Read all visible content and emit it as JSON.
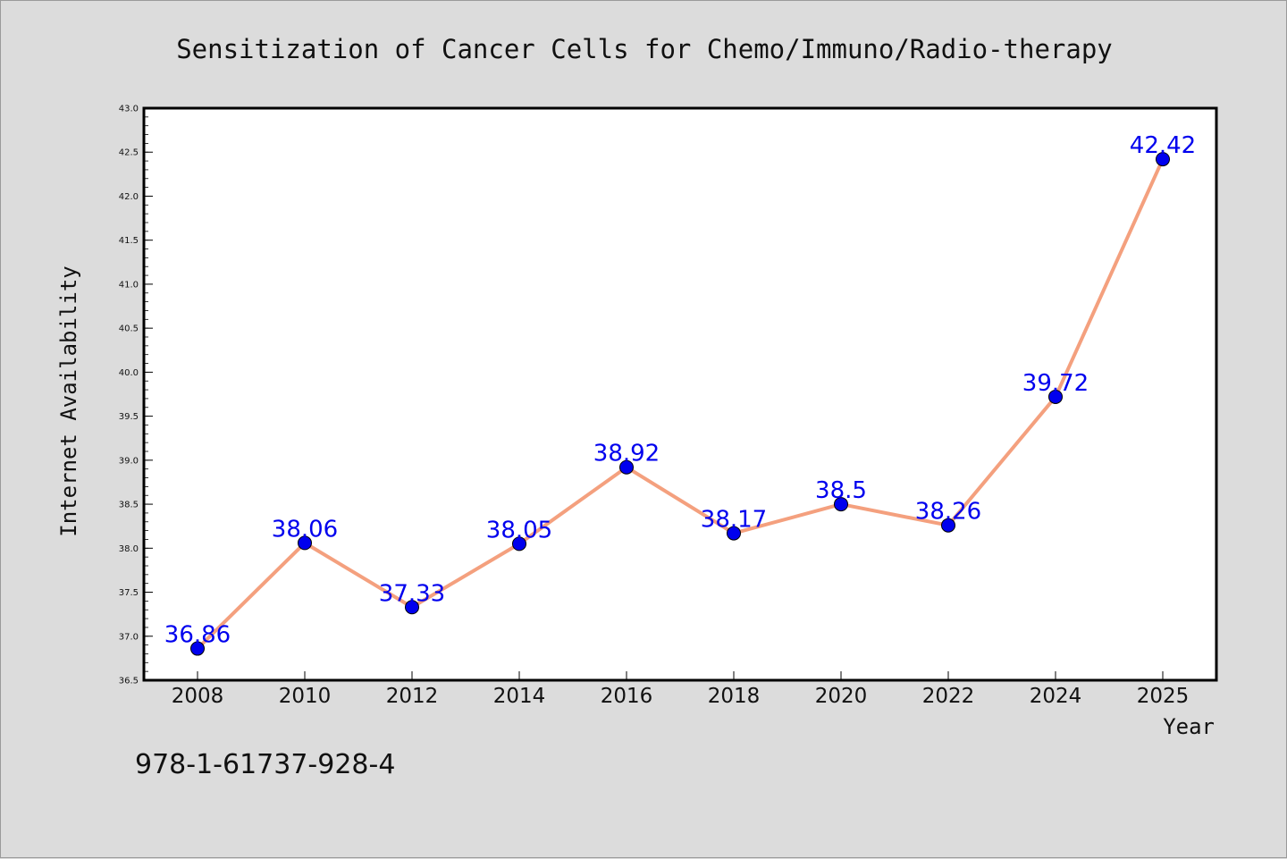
{
  "chart_data": {
    "type": "line",
    "title": "Sensitization of Cancer Cells for Chemo/Immuno/Radio-therapy",
    "xlabel": "Year",
    "ylabel": "Internet Availability",
    "x": [
      "2008",
      "2010",
      "2012",
      "2014",
      "2016",
      "2018",
      "2020",
      "2022",
      "2024",
      "2025"
    ],
    "series": [
      {
        "values": [
          36.86,
          38.06,
          37.33,
          38.05,
          38.92,
          38.17,
          38.5,
          38.26,
          39.72,
          42.42
        ],
        "labels": [
          "36.86",
          "38.06",
          "37.33",
          "38.05",
          "38.92",
          "38.17",
          "38.5",
          "38.26",
          "39.72",
          "42.42"
        ]
      }
    ],
    "ylim": [
      36.5,
      43.0
    ],
    "yticks": [
      "36.5",
      "37.0",
      "37.5",
      "38.0",
      "38.5",
      "39.0",
      "39.5",
      "40.0",
      "40.5",
      "41.0",
      "41.5",
      "42.0",
      "42.5",
      "43.0"
    ],
    "grid": false,
    "legend": "none",
    "line_color": "#f4a07e",
    "marker_color": "#0000ee",
    "label_color": "#0000ee"
  },
  "footer": {
    "isbn": "978-1-61737-928-4"
  }
}
